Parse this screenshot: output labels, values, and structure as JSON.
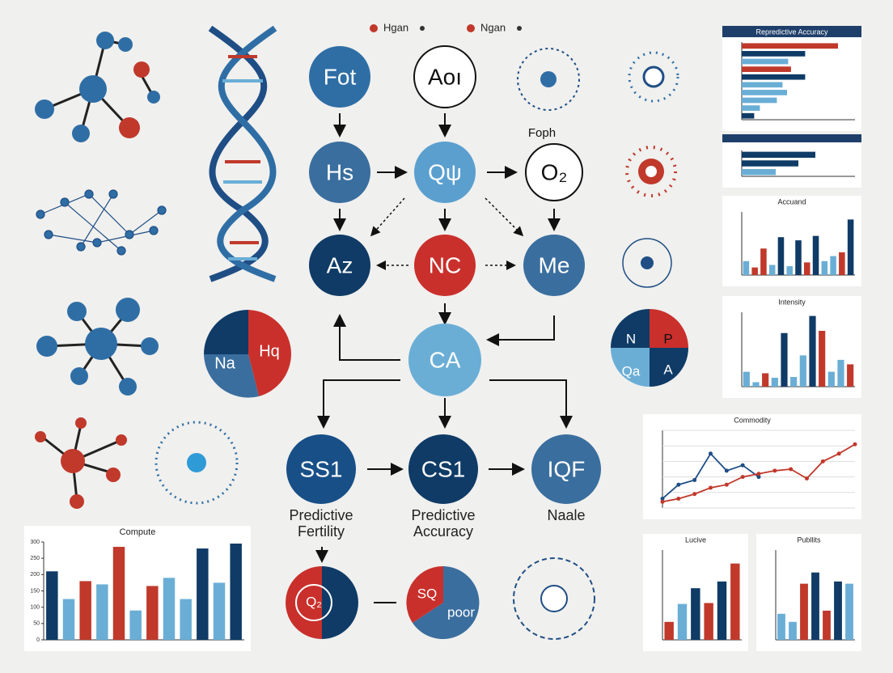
{
  "legend": [
    {
      "label": "Hgan",
      "color": "#c0392b"
    },
    {
      "label": "Ngan",
      "color": "#c0392b"
    }
  ],
  "nodes": [
    {
      "label": "Fot",
      "color": "#2f6ea5"
    },
    {
      "label": "Aoı",
      "color": "#ffffff"
    },
    {
      "label": "Hs",
      "color": "#3a6e9e"
    },
    {
      "label": "Qψ",
      "color": "#5b9fcf"
    },
    {
      "label": "O₂",
      "color": "#ffffff"
    },
    {
      "label": "Az",
      "color": "#0f3b66"
    },
    {
      "label": "NC",
      "color": "#c9302c"
    },
    {
      "label": "Me",
      "color": "#3a6e9e"
    },
    {
      "label": "CA",
      "color": "#6aaed6"
    },
    {
      "label": "SS1",
      "color": "#184f87"
    },
    {
      "label": "CS1",
      "color": "#0f3b66"
    },
    {
      "label": "IQF",
      "color": "#3a6e9e"
    }
  ],
  "node_note": "Foph",
  "captions": [
    "Predictive Fertility",
    "Predictive Accuracy",
    "Naale"
  ],
  "pie_labels": {
    "left": [
      "Na",
      "Hq"
    ],
    "right": [
      "N",
      "P",
      "Qa",
      "A"
    ],
    "bottom_left": [
      "Q₂"
    ],
    "bottom_right": [
      "SQ",
      "poor"
    ]
  },
  "chart_data": [
    {
      "type": "hbar",
      "title": "Repredictive Accuracy",
      "xlim": [
        0,
        200
      ],
      "values": [
        170,
        112,
        82,
        87,
        112,
        72,
        80,
        62,
        32,
        22
      ],
      "colors": [
        "#c0392b",
        "#0f3b66",
        "#6aaed6",
        "#c0392b",
        "#0f3b66",
        "#6aaed6",
        "#6aaed6",
        "#6aaed6",
        "#6aaed6",
        "#0f3b66"
      ]
    },
    {
      "type": "hbar",
      "xlim": [
        0,
        200
      ],
      "values": [
        130,
        100,
        60
      ],
      "colors": [
        "#0f3b66",
        "#0f3b66",
        "#6aaed6"
      ]
    },
    {
      "type": "bar",
      "title": "Accuand",
      "ylim": [
        0,
        100
      ],
      "values": [
        22,
        12,
        42,
        16,
        60,
        14,
        55,
        20,
        62,
        22,
        30,
        36,
        88
      ],
      "colors": [
        "#6aaed6",
        "#c0392b",
        "#c0392b",
        "#6aaed6",
        "#0f3b66",
        "#6aaed6",
        "#0f3b66",
        "#c0392b",
        "#0f3b66",
        "#6aaed6",
        "#6aaed6",
        "#c0392b",
        "#0f3b66"
      ]
    },
    {
      "type": "bar",
      "title": "Intensity",
      "ylim": [
        0,
        100
      ],
      "values": [
        20,
        6,
        18,
        12,
        72,
        13,
        42,
        95,
        75,
        20,
        36,
        30
      ],
      "colors": [
        "#6aaed6",
        "#6aaed6",
        "#c0392b",
        "#6aaed6",
        "#0f3b66",
        "#6aaed6",
        "#6aaed6",
        "#0f3b66",
        "#c0392b",
        "#6aaed6",
        "#6aaed6",
        "#c0392b"
      ]
    },
    {
      "type": "line",
      "title": "Commodity",
      "ylim": [
        0,
        100
      ],
      "series": [
        {
          "color": "#1f4e85",
          "values": [
            12,
            30,
            36,
            70,
            48,
            55,
            40,
            null,
            null,
            null,
            null,
            null,
            null
          ]
        },
        {
          "color": "#c0392b",
          "values": [
            8,
            12,
            18,
            26,
            30,
            40,
            44,
            48,
            50,
            38,
            60,
            70,
            82
          ]
        }
      ]
    },
    {
      "type": "bar",
      "title": "Compute",
      "ylim": [
        0,
        300
      ],
      "yticks": [
        0,
        50,
        100,
        150,
        200,
        250,
        300
      ],
      "values": [
        210,
        125,
        180,
        170,
        285,
        90,
        165,
        190,
        125,
        280,
        175,
        295
      ],
      "colors": [
        "#0f3b66",
        "#6aaed6",
        "#c0392b",
        "#6aaed6",
        "#c0392b",
        "#6aaed6",
        "#c0392b",
        "#6aaed6",
        "#6aaed6",
        "#0f3b66",
        "#6aaed6",
        "#0f3b66"
      ]
    },
    {
      "type": "bar",
      "title": "Lucive",
      "ylim": [
        0,
        200
      ],
      "values": [
        40,
        80,
        115,
        82,
        130,
        170
      ],
      "colors": [
        "#c0392b",
        "#6aaed6",
        "#0f3b66",
        "#c0392b",
        "#0f3b66",
        "#c0392b"
      ]
    },
    {
      "type": "bar",
      "title": "Publlits",
      "ylim": [
        0,
        200
      ],
      "values": [
        58,
        40,
        125,
        150,
        65,
        130,
        125
      ],
      "colors": [
        "#6aaed6",
        "#6aaed6",
        "#c0392b",
        "#0f3b66",
        "#c0392b",
        "#0f3b66",
        "#6aaed6"
      ]
    }
  ]
}
